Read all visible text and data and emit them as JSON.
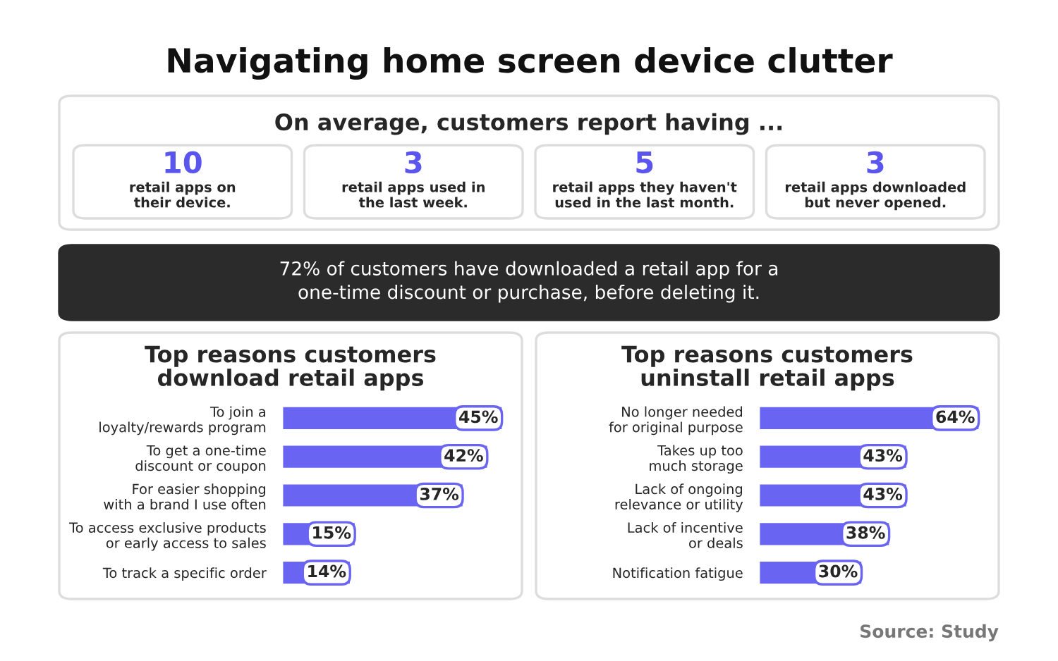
{
  "chart_data": [
    {
      "type": "other",
      "title": "Navigating home screen device clutter",
      "subtitle": "On average, customers report having ...",
      "categories": [
        "retail apps on\ntheir device.",
        "retail apps used in\nthe last week.",
        "retail apps they haven't\nused in the last month.",
        "retail apps downloaded\nbut never opened."
      ],
      "values": [
        10,
        3,
        5,
        3
      ],
      "data_labels": true,
      "annotations": [
        "72% of customers have downloaded a retail app for a\none-time discount or purchase, before deleting it.",
        "Source: Study"
      ]
    },
    {
      "type": "bar",
      "orientation": "horizontal",
      "title": "Top reasons customers\ndownload retail apps",
      "categories": [
        "To join a\nloyalty/rewards program",
        "To get a one-time\ndiscount or coupon",
        "For easier shopping\nwith a brand I use often",
        "To access exclusive products\nor early access to sales",
        "To track a specific order"
      ],
      "values": [
        45,
        42,
        37,
        15,
        14
      ],
      "color": "#6a64f2",
      "value_labels": [
        "45%",
        "42%",
        "37%",
        "15%",
        "14%"
      ]
    },
    {
      "type": "bar",
      "orientation": "horizontal",
      "title": "Top reasons customers\nuninstall retail apps",
      "categories": [
        "No longer needed\nfor original purpose",
        "Takes up too\nmuch storage",
        "Lack of ongoing\nrelevance or utility",
        "Lack of incentive\nor deals",
        "Notification fatigue"
      ],
      "values": [
        64,
        43,
        43,
        38,
        30
      ],
      "color": "#6a64f2",
      "value_labels": [
        "64%",
        "43%",
        "43%",
        "38%",
        "30%"
      ]
    }
  ]
}
